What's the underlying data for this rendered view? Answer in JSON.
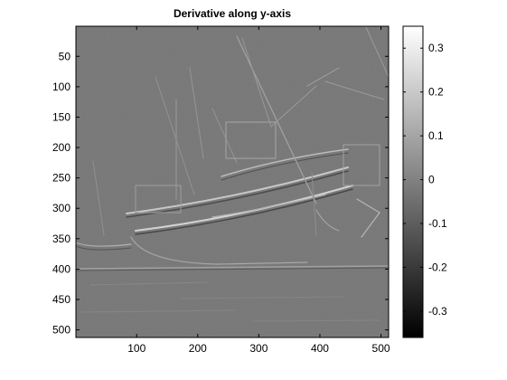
{
  "chart_data": {
    "type": "heatmap",
    "title": "Derivative along y-axis",
    "image": {
      "description": "Grayscale edge-filtered photograph of fishing boats (derivative along y-axis)",
      "colormap": "gray",
      "background_value": 0
    },
    "x_axis": {
      "range": [
        1,
        512
      ],
      "ticks": [
        {
          "value": 100,
          "label": "100"
        },
        {
          "value": 200,
          "label": "200"
        },
        {
          "value": 300,
          "label": "300"
        },
        {
          "value": 400,
          "label": "400"
        },
        {
          "value": 500,
          "label": "500"
        }
      ]
    },
    "y_axis": {
      "range": [
        1,
        512
      ],
      "reversed": true,
      "ticks": [
        {
          "value": 50,
          "label": "50"
        },
        {
          "value": 100,
          "label": "100"
        },
        {
          "value": 150,
          "label": "150"
        },
        {
          "value": 200,
          "label": "200"
        },
        {
          "value": 250,
          "label": "250"
        },
        {
          "value": 300,
          "label": "300"
        },
        {
          "value": 350,
          "label": "350"
        },
        {
          "value": 400,
          "label": "400"
        },
        {
          "value": 450,
          "label": "450"
        },
        {
          "value": 500,
          "label": "500"
        }
      ]
    },
    "colorbar": {
      "range": [
        -0.36,
        0.35
      ],
      "ticks": [
        {
          "value": 0.3,
          "label": "0.3"
        },
        {
          "value": 0.2,
          "label": "0.2"
        },
        {
          "value": 0.1,
          "label": "0.1"
        },
        {
          "value": 0,
          "label": "0"
        },
        {
          "value": -0.1,
          "label": "-0.1"
        },
        {
          "value": -0.2,
          "label": "-0.2"
        },
        {
          "value": -0.3,
          "label": "-0.3"
        }
      ],
      "colors": {
        "low": "#000000",
        "high": "#ffffff"
      }
    }
  }
}
